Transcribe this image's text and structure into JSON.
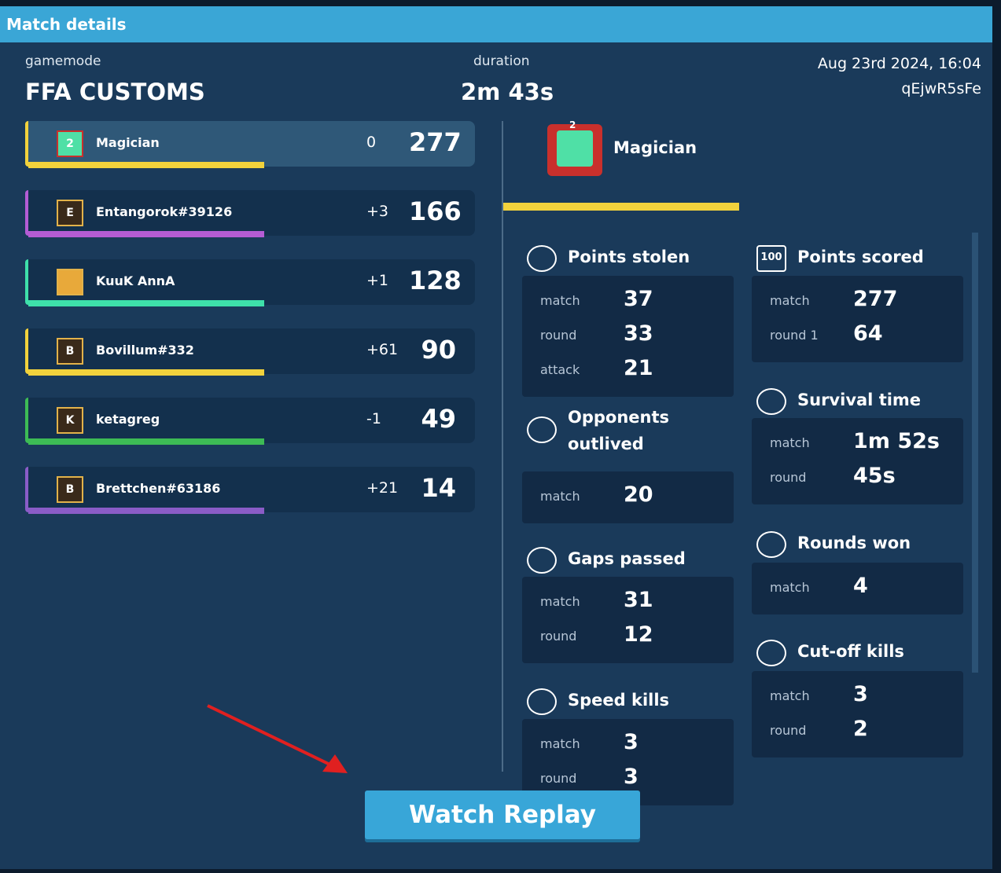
{
  "header": {
    "title": "Match details"
  },
  "info": {
    "gamemode_label": "gamemode",
    "gamemode": "FFA CUSTOMS",
    "duration_label": "duration",
    "duration": "2m 43s",
    "date": "Aug 23rd 2024, 16:04",
    "match_id": "qEjwR5sFe"
  },
  "players": [
    {
      "badge": "2",
      "name": "Magician",
      "change": "0",
      "score": 277
    },
    {
      "badge": "E",
      "name": "Entangorok#39126",
      "change": "+3",
      "score": 166
    },
    {
      "badge": null,
      "name": "KuuK AnnA",
      "change": "+1",
      "score": 128
    },
    {
      "badge": "B",
      "name": "Bovillum#332",
      "change": "+61",
      "score": 90
    },
    {
      "badge": "K",
      "name": "ketagreg",
      "change": "-1",
      "score": 49
    },
    {
      "badge": "B",
      "name": "Brettchen#63186",
      "change": "+21",
      "score": 14
    }
  ],
  "selected": {
    "badge": "2",
    "name": "Magician"
  },
  "stats": [
    {
      "title": "Points stolen",
      "rows": [
        [
          "match",
          "37"
        ],
        [
          "round",
          "33"
        ],
        [
          "attack",
          "21"
        ]
      ]
    },
    {
      "title": "Opponents outlived",
      "rows": [
        [
          "match",
          "20"
        ]
      ]
    },
    {
      "title": "Gaps passed",
      "rows": [
        [
          "match",
          "31"
        ],
        [
          "round",
          "12"
        ]
      ]
    },
    {
      "title": "Speed kills",
      "rows": [
        [
          "match",
          "3"
        ],
        [
          "round",
          "3"
        ]
      ]
    },
    {
      "title": "Points scored",
      "icon": "100",
      "rows": [
        [
          "match",
          "277"
        ],
        [
          "round 1",
          "64"
        ]
      ]
    },
    {
      "title": "Survival time",
      "rows": [
        [
          "match",
          "1m 52s"
        ],
        [
          "round",
          "45s"
        ]
      ]
    },
    {
      "title": "Rounds won",
      "rows": [
        [
          "match",
          "4"
        ]
      ]
    },
    {
      "title": "Cut-off kills",
      "rows": [
        [
          "match",
          "3"
        ],
        [
          "round",
          "2"
        ]
      ]
    }
  ],
  "button": {
    "label": "Watch Replay"
  }
}
